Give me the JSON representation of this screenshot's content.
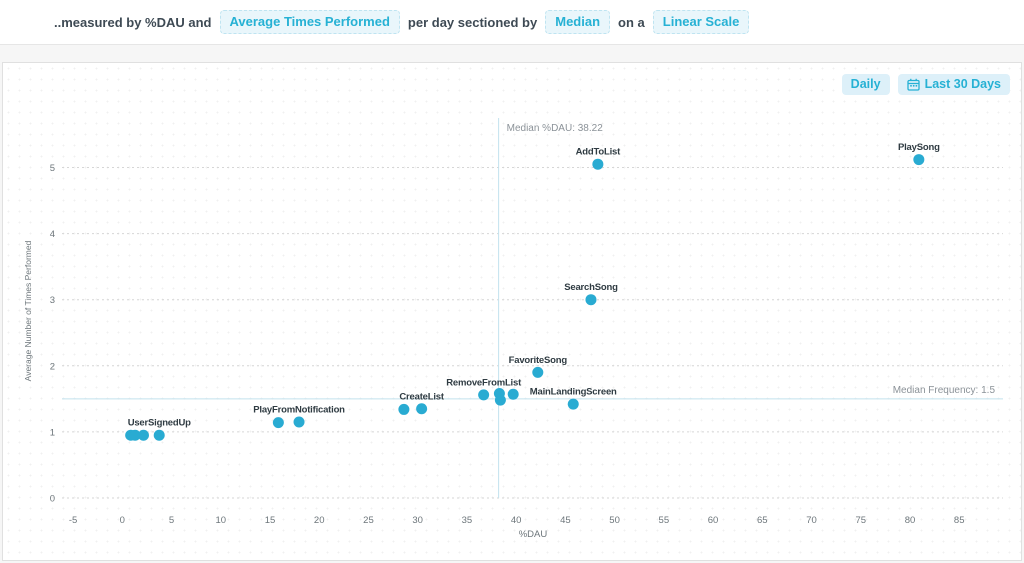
{
  "header": {
    "prefix": "..measured by %DAU and",
    "metric_button": "Average Times Performed",
    "middle": "per day sectioned by",
    "section_button": "Median",
    "connector": "on a",
    "scale_button": "Linear Scale"
  },
  "toolbar": {
    "interval_button": "Daily",
    "range_button": "Last 30 Days",
    "calendar_icon": "calendar-icon"
  },
  "colors": {
    "accent": "#26b1d4",
    "point": "#29abd2",
    "median_line": "#c2e2ee",
    "grid": "#d6d6d6",
    "tick_text": "#6d767b",
    "median_text": "#8b9298",
    "point_label": "#2f3b42"
  },
  "chart_data": {
    "type": "scatter",
    "title": "",
    "xlabel": "%DAU",
    "ylabel": "Average Number of Times Performed",
    "xlim": [
      -7.5,
      89
    ],
    "ylim": [
      0,
      5.75
    ],
    "grid": "horizontal-dashed",
    "x_ticks": [
      -5,
      0,
      5,
      10,
      15,
      20,
      25,
      30,
      35,
      40,
      45,
      50,
      55,
      60,
      65,
      70,
      75,
      80,
      85
    ],
    "y_ticks": [
      0,
      1,
      2,
      3,
      4,
      5
    ],
    "median_x": {
      "label": "Median %DAU: 38.22",
      "value": 38.22
    },
    "median_y": {
      "label": "Median Frequency: 1.5",
      "value": 1.5
    },
    "points": [
      {
        "label": "",
        "x": 0.85,
        "y": 0.95
      },
      {
        "label": "",
        "x": 1.3,
        "y": 0.95
      },
      {
        "label": "",
        "x": 2.15,
        "y": 0.95
      },
      {
        "label": "UserSignedUp",
        "x": 3.75,
        "y": 0.95
      },
      {
        "label": "",
        "x": 15.85,
        "y": 1.14
      },
      {
        "label": "PlayFromNotification",
        "x": 17.95,
        "y": 1.15
      },
      {
        "label": "",
        "x": 28.6,
        "y": 1.34
      },
      {
        "label": "CreateList",
        "x": 30.4,
        "y": 1.35
      },
      {
        "label": "RemoveFromList",
        "x": 36.7,
        "y": 1.56
      },
      {
        "label": "",
        "x": 38.3,
        "y": 1.58
      },
      {
        "label": "",
        "x": 38.4,
        "y": 1.48
      },
      {
        "label": "",
        "x": 39.7,
        "y": 1.57
      },
      {
        "label": "FavoriteSong",
        "x": 42.2,
        "y": 1.9
      },
      {
        "label": "MainLandingScreen",
        "x": 45.8,
        "y": 1.42
      },
      {
        "label": "SearchSong",
        "x": 47.6,
        "y": 3.0
      },
      {
        "label": "AddToList",
        "x": 48.3,
        "y": 5.05
      },
      {
        "label": "PlaySong",
        "x": 80.9,
        "y": 5.12
      }
    ]
  }
}
